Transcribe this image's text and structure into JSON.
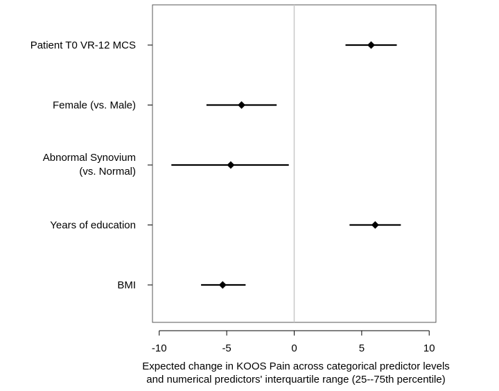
{
  "chart_data": {
    "type": "forest",
    "xlabel_lines": [
      "Expected change in KOOS Pain across categorical predictor levels",
      "and numerical predictors' interquartile range (25--75th percentile)"
    ],
    "xlim": [
      -10.5,
      10.5
    ],
    "xticks": [
      -10,
      -5,
      0,
      5,
      10
    ],
    "xtick_labels": [
      "-10",
      "-5",
      "0",
      "5",
      "10"
    ],
    "reference_line": 0,
    "rows": [
      {
        "label_lines": [
          "Patient T0 VR-12 MCS"
        ],
        "estimate": 5.7,
        "low": 3.8,
        "high": 7.6
      },
      {
        "label_lines": [
          "Female (vs. Male)"
        ],
        "estimate": -3.9,
        "low": -6.5,
        "high": -1.3
      },
      {
        "label_lines": [
          "Abnormal Synovium",
          "(vs. Normal)"
        ],
        "estimate": -4.7,
        "low": -9.1,
        "high": -0.4
      },
      {
        "label_lines": [
          "Years of education"
        ],
        "estimate": 6.0,
        "low": 4.1,
        "high": 7.9
      },
      {
        "label_lines": [
          "BMI"
        ],
        "estimate": -5.3,
        "low": -6.9,
        "high": -3.6
      }
    ]
  }
}
